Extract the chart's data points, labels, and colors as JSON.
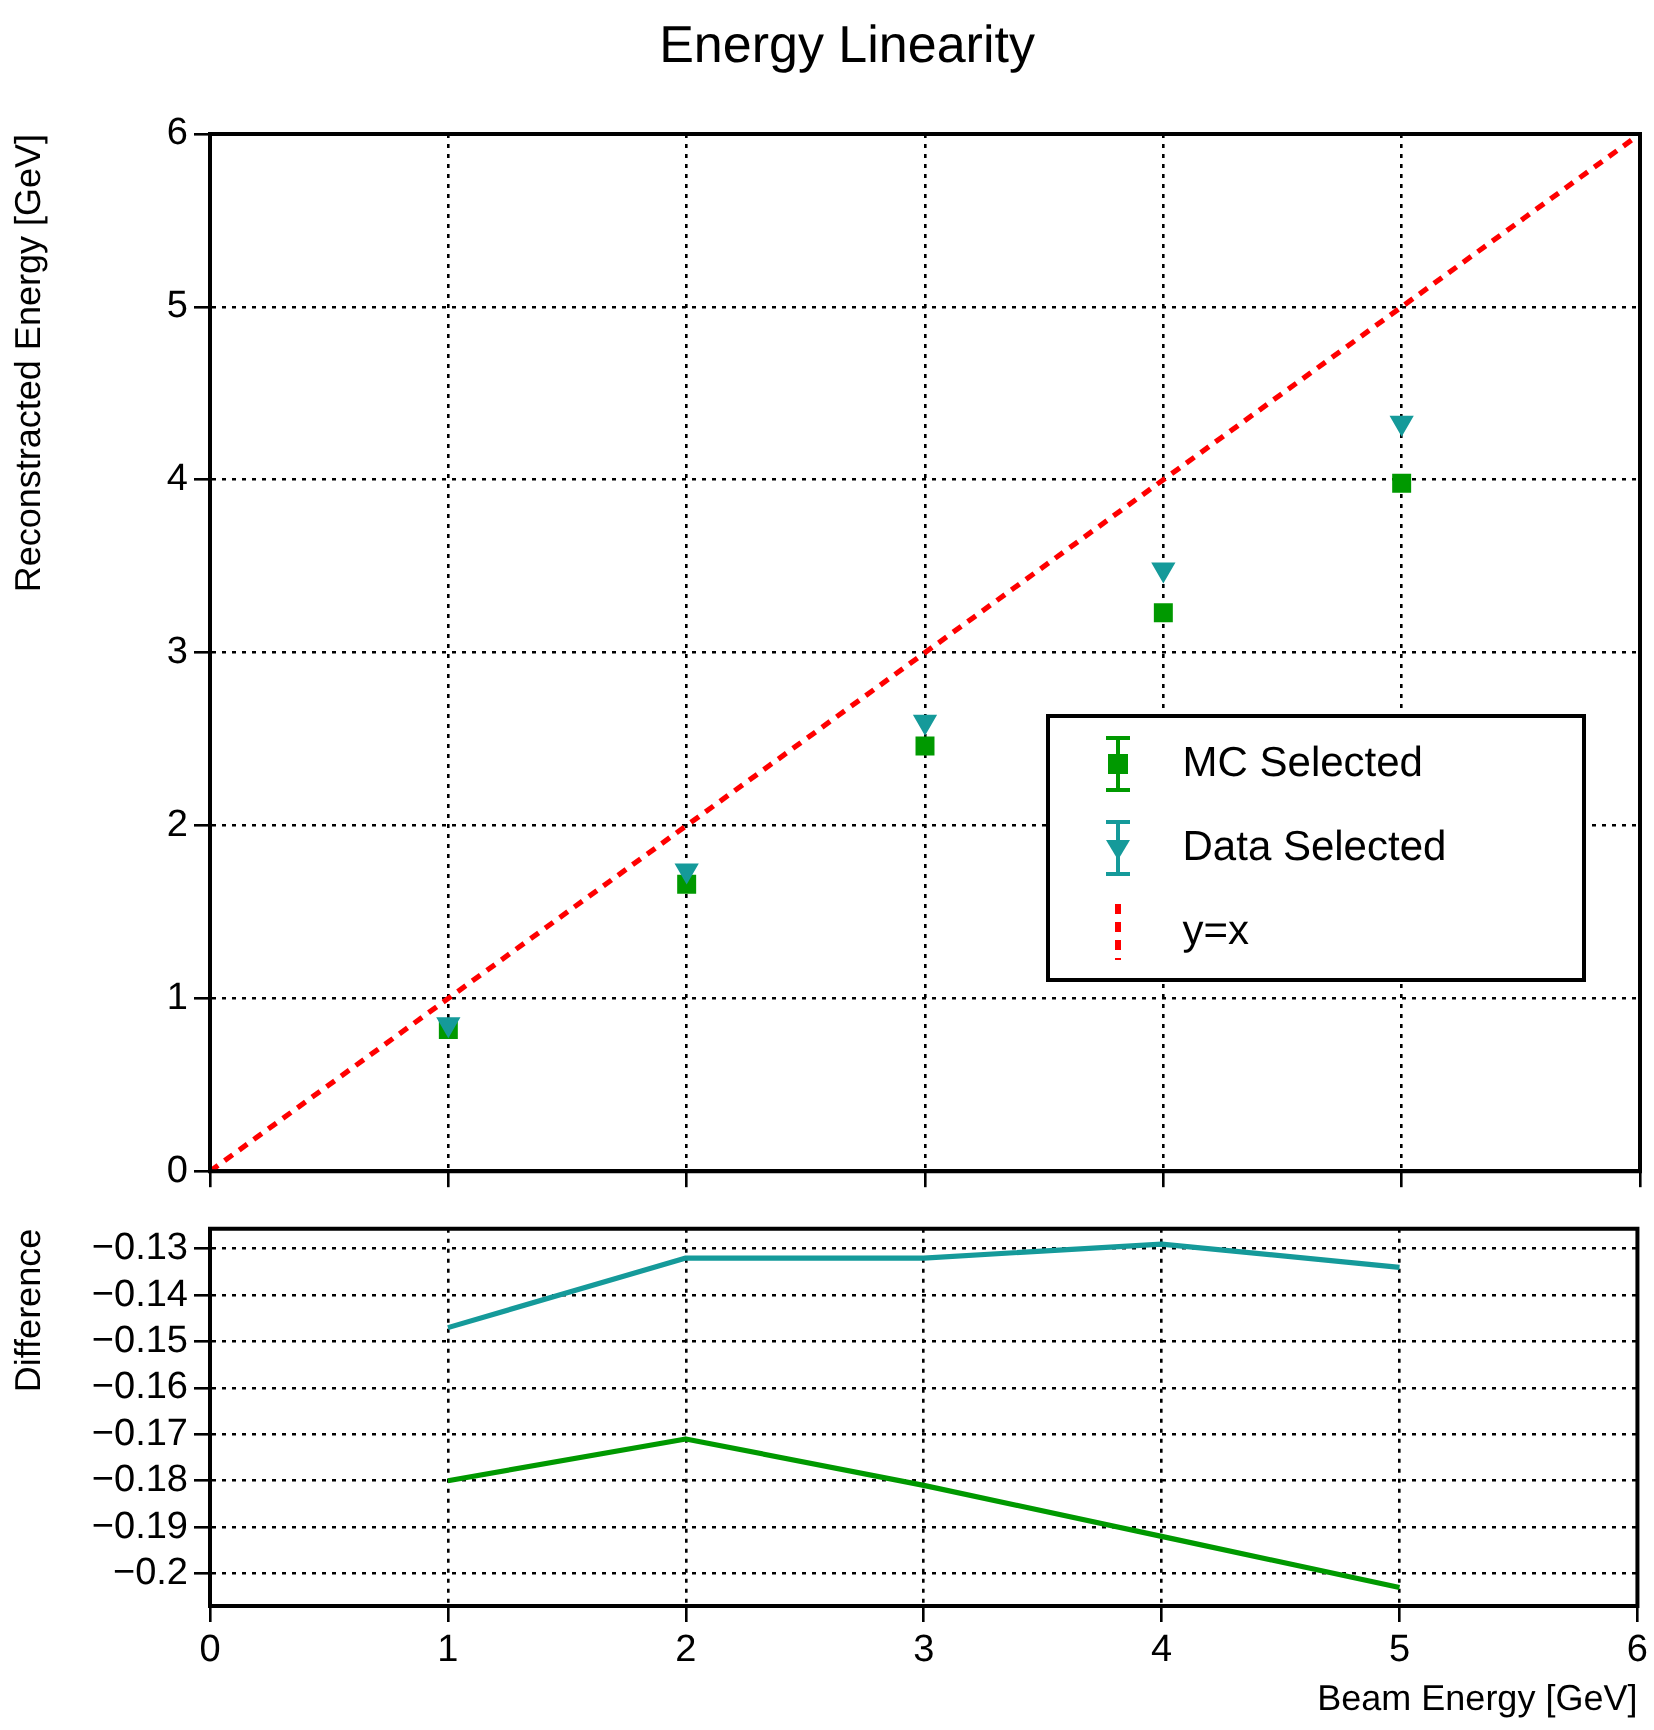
{
  "chart_data": [
    {
      "type": "scatter",
      "title": "Energy Linearity",
      "ylabel": "Reconstracted Energy [GeV]",
      "xlim": [
        0,
        6
      ],
      "xticks": [
        0,
        1,
        2,
        3,
        4,
        5,
        6
      ],
      "ylim": [
        0,
        6
      ],
      "yticks": [
        0,
        1,
        2,
        3,
        4,
        5,
        6
      ],
      "tick_labels": "y",
      "grid": true,
      "legend": "right",
      "series": [
        {
          "name": "MC Selected",
          "color": "#009900",
          "marker": "square",
          "x": [
            1,
            2,
            3,
            4,
            5
          ],
          "values": [
            0.82,
            1.66,
            2.46,
            3.23,
            3.98
          ]
        },
        {
          "name": "Data Selected",
          "color": "#159a9a",
          "marker": "triangle",
          "x": [
            1,
            2,
            3,
            4,
            5
          ],
          "values": [
            0.85,
            1.74,
            2.6,
            3.48,
            4.33
          ]
        },
        {
          "name": "y=x",
          "type": "line",
          "color": "#ff0000",
          "marker": "none",
          "line_style": "dashed",
          "x": [
            0,
            6
          ],
          "values": [
            0,
            6
          ]
        }
      ]
    },
    {
      "type": "line",
      "xlabel": "Beam Energy [GeV]",
      "ylabel": "Difference",
      "xlim": [
        0,
        6
      ],
      "xticks": [
        0,
        1,
        2,
        3,
        4,
        5,
        6
      ],
      "ylim": [
        -0.207,
        -0.1257
      ],
      "yticks": [
        {
          "value": -0.2,
          "label": "−0.2"
        },
        {
          "value": -0.19,
          "label": "−0.19"
        },
        {
          "value": -0.18,
          "label": "−0.18"
        },
        {
          "value": -0.17,
          "label": "−0.17"
        },
        {
          "value": -0.16,
          "label": "−0.16"
        },
        {
          "value": -0.15,
          "label": "−0.15"
        },
        {
          "value": -0.14,
          "label": "−0.14"
        },
        {
          "value": -0.13,
          "label": "−0.13"
        }
      ],
      "grid": true,
      "marker": "none",
      "series": [
        {
          "color": "#159a9a",
          "x": [
            1,
            2,
            3,
            4,
            5
          ],
          "values": [
            -0.147,
            -0.132,
            -0.132,
            -0.129,
            -0.134
          ]
        },
        {
          "color": "#009900",
          "x": [
            1,
            2,
            3,
            4,
            5
          ],
          "values": [
            -0.18,
            -0.171,
            -0.181,
            -0.192,
            -0.203
          ]
        }
      ]
    }
  ]
}
